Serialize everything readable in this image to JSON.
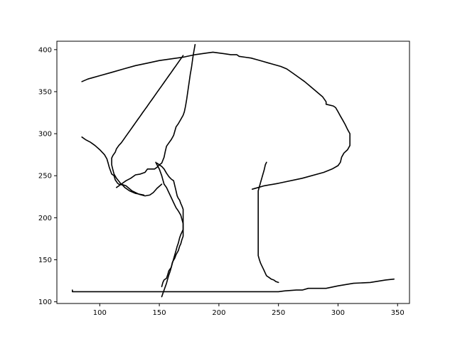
{
  "chart_data": {
    "type": "line",
    "title": "",
    "xlabel": "",
    "ylabel": "",
    "xlim": [
      64,
      360
    ],
    "ylim": [
      98,
      410
    ],
    "xticks": [
      100,
      150,
      200,
      250,
      300,
      350
    ],
    "yticks": [
      100,
      150,
      200,
      250,
      300,
      350,
      400
    ],
    "grid": false,
    "legend": "none",
    "line_color": "#000000",
    "series": [
      {
        "points": [
          [
            114,
            236
          ],
          [
            118,
            240
          ],
          [
            122,
            244
          ],
          [
            126,
            247
          ],
          [
            130,
            251
          ],
          [
            134,
            252
          ],
          [
            138,
            254
          ],
          [
            140,
            258
          ],
          [
            146,
            258
          ],
          [
            148,
            260
          ],
          [
            150,
            263
          ],
          [
            152,
            265
          ],
          [
            154,
            272
          ],
          [
            155,
            279
          ],
          [
            156,
            285
          ],
          [
            158,
            289
          ],
          [
            160,
            293
          ],
          [
            162,
            298
          ],
          [
            164,
            308
          ],
          [
            166,
            312
          ],
          [
            168,
            317
          ],
          [
            170,
            322
          ],
          [
            171,
            326
          ],
          [
            172,
            333
          ],
          [
            173,
            341
          ],
          [
            174,
            351
          ],
          [
            175,
            361
          ],
          [
            176,
            371
          ],
          [
            177,
            379
          ],
          [
            178,
            389
          ],
          [
            179,
            398
          ],
          [
            180,
            406
          ]
        ]
      },
      {
        "points": [
          [
            77,
            114
          ],
          [
            77,
            112
          ],
          [
            100,
            112
          ],
          [
            150,
            112
          ],
          [
            200,
            112
          ],
          [
            250,
            112
          ],
          [
            255,
            113
          ],
          [
            265,
            114
          ],
          [
            270,
            114
          ],
          [
            275,
            116
          ],
          [
            290,
            116
          ],
          [
            300,
            119
          ],
          [
            313,
            122
          ],
          [
            327,
            123
          ],
          [
            340,
            126
          ],
          [
            347,
            127
          ]
        ]
      },
      {
        "points": [
          [
            137,
            227
          ],
          [
            130,
            229
          ],
          [
            125,
            232
          ],
          [
            121,
            236
          ],
          [
            119,
            239
          ],
          [
            116,
            240
          ],
          [
            115,
            241
          ],
          [
            113,
            245
          ],
          [
            112,
            250
          ],
          [
            110,
            252
          ],
          [
            108,
            260
          ],
          [
            107,
            265
          ],
          [
            106,
            270
          ],
          [
            104,
            275
          ],
          [
            100,
            281
          ],
          [
            96,
            286
          ],
          [
            92,
            290
          ],
          [
            88,
            293
          ],
          [
            85,
            296
          ]
        ]
      },
      {
        "points": [
          [
            148,
            265
          ],
          [
            150,
            263
          ],
          [
            152,
            261
          ],
          [
            154,
            258
          ],
          [
            156,
            253
          ],
          [
            158,
            249
          ],
          [
            160,
            246
          ],
          [
            162,
            244
          ],
          [
            163,
            238
          ],
          [
            164,
            232
          ],
          [
            165,
            226
          ],
          [
            166,
            223
          ],
          [
            167,
            221
          ],
          [
            168,
            217
          ],
          [
            169,
            214
          ],
          [
            170,
            210
          ],
          [
            170,
            205
          ],
          [
            170,
            200
          ],
          [
            170,
            195
          ],
          [
            170,
            191
          ],
          [
            170,
            186
          ],
          [
            168,
            180
          ],
          [
            167,
            176
          ],
          [
            166,
            170
          ],
          [
            165,
            166
          ],
          [
            164,
            161
          ],
          [
            163,
            156
          ],
          [
            162,
            151
          ],
          [
            161,
            146
          ],
          [
            160,
            141
          ],
          [
            159,
            136
          ],
          [
            158,
            132
          ],
          [
            157,
            127
          ],
          [
            156,
            122
          ],
          [
            155,
            118
          ],
          [
            154,
            114
          ],
          [
            153,
            110
          ],
          [
            152,
            106
          ]
        ]
      },
      {
        "points": [
          [
            152,
            240
          ],
          [
            148,
            235
          ],
          [
            145,
            230
          ],
          [
            142,
            227
          ],
          [
            138,
            226
          ],
          [
            133,
            228
          ],
          [
            127,
            232
          ],
          [
            122,
            238
          ],
          [
            118,
            240
          ],
          [
            114,
            247
          ],
          [
            112,
            252
          ],
          [
            111,
            257
          ],
          [
            110,
            263
          ],
          [
            110,
            266
          ],
          [
            110,
            271
          ],
          [
            111,
            274
          ],
          [
            113,
            278
          ],
          [
            114,
            282
          ],
          [
            116,
            286
          ],
          [
            118,
            289
          ],
          [
            120,
            293
          ],
          [
            122,
            297
          ],
          [
            124,
            301
          ],
          [
            126,
            305
          ],
          [
            128,
            309
          ],
          [
            130,
            313
          ],
          [
            132,
            317
          ],
          [
            134,
            321
          ],
          [
            136,
            325
          ],
          [
            138,
            329
          ],
          [
            140,
            333
          ],
          [
            142,
            337
          ],
          [
            144,
            341
          ],
          [
            146,
            345
          ],
          [
            148,
            349
          ],
          [
            150,
            353
          ],
          [
            152,
            357
          ],
          [
            154,
            361
          ],
          [
            156,
            365
          ],
          [
            158,
            369
          ],
          [
            160,
            373
          ],
          [
            162,
            377
          ],
          [
            164,
            381
          ],
          [
            166,
            385
          ],
          [
            168,
            389
          ],
          [
            170,
            393
          ]
        ]
      },
      {
        "points": [
          [
            152,
            118
          ],
          [
            153,
            123
          ],
          [
            154,
            126
          ],
          [
            156,
            128
          ],
          [
            157,
            132
          ],
          [
            158,
            137
          ],
          [
            160,
            141
          ],
          [
            161,
            147
          ],
          [
            163,
            152
          ],
          [
            164,
            156
          ],
          [
            166,
            161
          ],
          [
            167,
            166
          ],
          [
            168,
            169
          ],
          [
            169,
            174
          ],
          [
            170,
            178
          ],
          [
            170,
            183
          ],
          [
            170,
            188
          ],
          [
            170,
            193
          ],
          [
            169,
            198
          ],
          [
            168,
            203
          ],
          [
            166,
            208
          ],
          [
            164,
            212
          ],
          [
            162,
            218
          ],
          [
            160,
            224
          ],
          [
            158,
            230
          ],
          [
            156,
            236
          ],
          [
            154,
            240
          ],
          [
            153,
            245
          ],
          [
            152,
            250
          ],
          [
            151,
            254
          ],
          [
            150,
            258
          ],
          [
            148,
            263
          ],
          [
            147,
            266
          ]
        ]
      },
      {
        "points": [
          [
            228,
            234
          ],
          [
            233,
            236
          ],
          [
            238,
            238
          ],
          [
            250,
            241
          ],
          [
            270,
            247
          ],
          [
            288,
            254
          ],
          [
            295,
            258
          ],
          [
            300,
            262
          ],
          [
            302,
            266
          ],
          [
            303,
            272
          ],
          [
            305,
            277
          ],
          [
            308,
            281
          ],
          [
            310,
            286
          ],
          [
            310,
            293
          ],
          [
            310,
            300
          ],
          [
            308,
            305
          ],
          [
            306,
            311
          ],
          [
            304,
            316
          ],
          [
            302,
            321
          ],
          [
            300,
            326
          ],
          [
            298,
            331
          ],
          [
            296,
            333
          ],
          [
            290,
            335
          ],
          [
            290,
            338
          ],
          [
            287,
            344
          ],
          [
            282,
            350
          ],
          [
            277,
            356
          ],
          [
            272,
            362
          ],
          [
            267,
            367
          ],
          [
            262,
            372
          ],
          [
            257,
            377
          ],
          [
            252,
            380
          ],
          [
            247,
            382
          ],
          [
            242,
            384
          ],
          [
            237,
            386
          ],
          [
            232,
            388
          ],
          [
            227,
            390
          ],
          [
            222,
            391
          ],
          [
            217,
            392
          ],
          [
            215,
            394
          ],
          [
            210,
            394
          ],
          [
            205,
            395
          ],
          [
            200,
            396
          ],
          [
            195,
            397
          ],
          [
            190,
            396
          ],
          [
            180,
            394
          ],
          [
            170,
            391
          ],
          [
            160,
            389
          ],
          [
            150,
            387
          ],
          [
            140,
            384
          ],
          [
            130,
            381
          ],
          [
            120,
            377
          ],
          [
            110,
            373
          ],
          [
            100,
            369
          ],
          [
            90,
            365
          ],
          [
            85,
            362
          ]
        ]
      },
      {
        "points": [
          [
            240,
            266
          ],
          [
            239,
            263
          ],
          [
            238,
            257
          ],
          [
            237,
            252
          ],
          [
            236,
            247
          ],
          [
            235,
            242
          ],
          [
            234,
            237
          ],
          [
            233,
            232
          ],
          [
            233,
            226
          ],
          [
            233,
            220
          ],
          [
            233,
            210
          ],
          [
            233,
            200
          ],
          [
            233,
            190
          ],
          [
            233,
            180
          ],
          [
            233,
            170
          ],
          [
            233,
            160
          ],
          [
            233,
            155
          ],
          [
            234,
            150
          ],
          [
            235,
            146
          ],
          [
            236,
            143
          ],
          [
            237,
            140
          ],
          [
            238,
            137
          ],
          [
            239,
            134
          ],
          [
            240,
            131
          ],
          [
            242,
            129
          ],
          [
            244,
            127
          ],
          [
            246,
            126
          ],
          [
            248,
            124
          ],
          [
            250,
            123
          ]
        ]
      }
    ]
  }
}
